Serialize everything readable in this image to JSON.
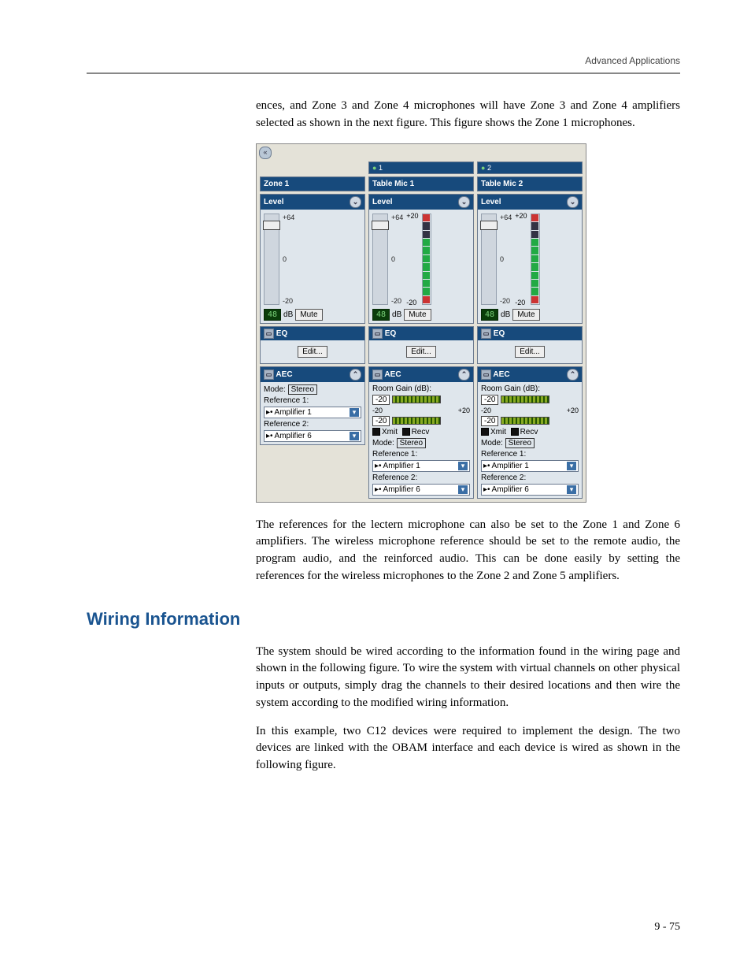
{
  "header": {
    "section": "Advanced Applications"
  },
  "para1": "ences, and Zone 3 and Zone 4 microphones will have Zone 3 and Zone 4 amplifiers selected as shown in the next figure. This figure shows the Zone 1 microphones.",
  "para2": "The references for the lectern microphone can also be set to the Zone 1 and Zone 6 amplifiers. The wireless microphone reference should be set to the remote audio, the program audio, and the reinforced audio. This can be done easily by setting the references for the wireless microphones to the Zone 2 and Zone 5 amplifiers.",
  "sectionHeading": "Wiring Information",
  "para3": "The system should be wired according to the information found in the wiring page and shown in the following figure. To wire the system with virtual channels on other physical inputs or outputs, simply drag the channels to their desired locations and then wire the system according to the modified wiring information.",
  "para4": "In this example, two C12 devices were required to implement the design. The two devices are linked with the OBAM interface and each device is wired as shown in the following figure.",
  "pageNumber": "9 - 75",
  "shot": {
    "collapseGlyph": "«",
    "stripLabels": {
      "one": "1●",
      "two": "2●"
    },
    "columns": [
      {
        "title": "Zone 1",
        "hasMeter": false,
        "hasGain": false
      },
      {
        "title": "Table Mic 1",
        "hasMeter": true,
        "hasGain": true
      },
      {
        "title": "Table Mic 2",
        "hasMeter": true,
        "hasGain": true
      }
    ],
    "panels": {
      "level": {
        "label": "Level",
        "scale": [
          "+64",
          "0",
          "-20"
        ],
        "meterScale": [
          "+20",
          "-20"
        ],
        "dbValue": "48",
        "dbUnit": "dB",
        "muteLabel": "Mute"
      },
      "eq": {
        "label": "EQ",
        "editLabel": "Edit..."
      },
      "aec": {
        "label": "AEC",
        "gainLabel": "Room Gain (dB):",
        "gainVal": "-20",
        "gainScale": [
          "-20",
          "+20"
        ],
        "xmit": "Xmit",
        "recv": "Recv",
        "modeLabel": "Mode:",
        "modeValue": "Stereo",
        "ref1Label": "Reference 1:",
        "ref1Value": "Amplifier 1",
        "ref2Label": "Reference 2:",
        "ref2Value": "Amplifier 6"
      }
    }
  }
}
